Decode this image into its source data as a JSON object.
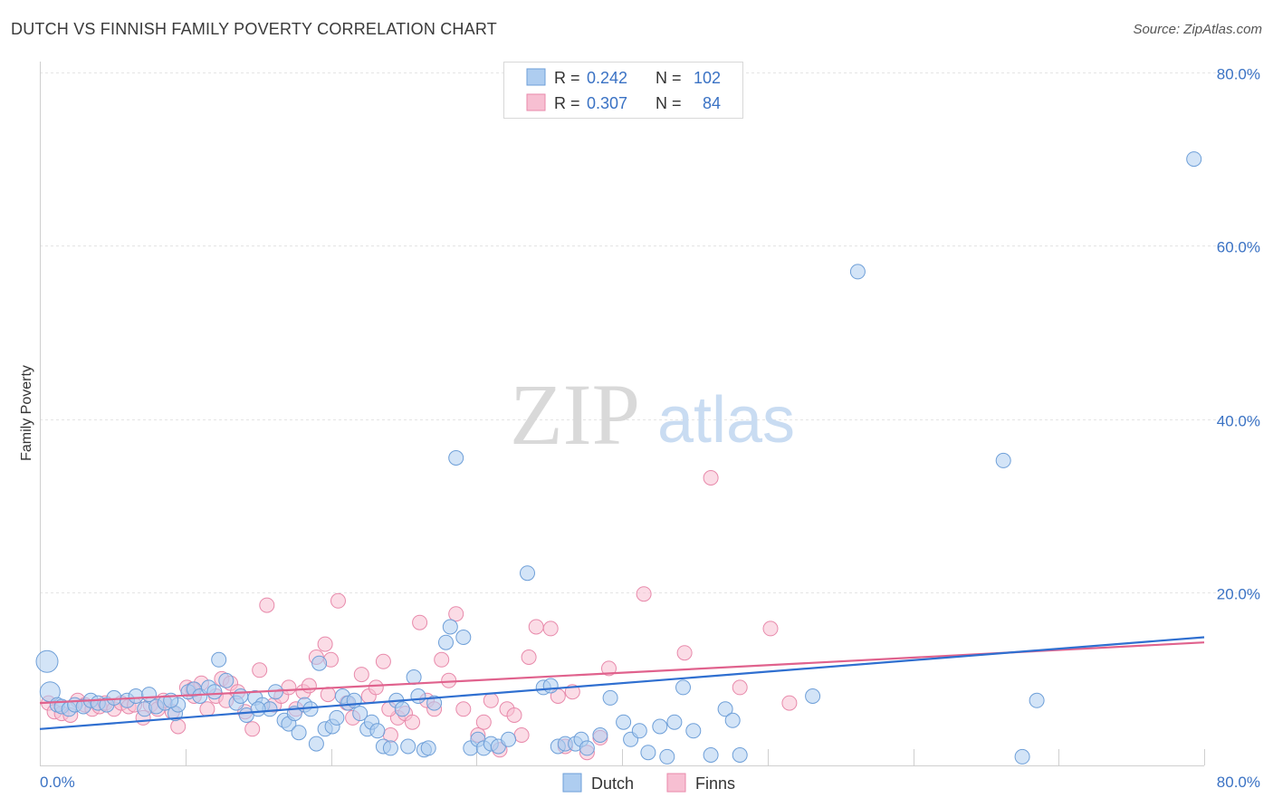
{
  "header": {
    "title": "DUTCH VS FINNISH FAMILY POVERTY CORRELATION CHART",
    "source": "Source: ZipAtlas.com"
  },
  "watermark": {
    "part1": "ZIP",
    "part2": "atlas"
  },
  "legend_box": {
    "rows": [
      {
        "r_label": "R =",
        "r_value": "0.242",
        "n_label": "N =",
        "n_value": "102",
        "color": "#7aaee8"
      },
      {
        "r_label": "R =",
        "r_value": "0.307",
        "n_label": "N =",
        "n_value": "84",
        "color": "#f28fb0"
      }
    ]
  },
  "bottom_legend": [
    {
      "label": "Dutch",
      "color": "#7aaee8"
    },
    {
      "label": "Finns",
      "color": "#f28fb0"
    }
  ],
  "colors": {
    "dutch_fill": "#aecdf0",
    "dutch_stroke": "#6e9fd8",
    "dutch_line": "#2f6fd0",
    "finns_fill": "#f7bfd2",
    "finns_stroke": "#e88aab",
    "finns_line": "#e0628d",
    "value_text": "#3a72c4"
  },
  "chart_data": {
    "type": "scatter",
    "title": "DUTCH VS FINNISH FAMILY POVERTY CORRELATION CHART",
    "xlabel": "",
    "ylabel": "Family Poverty",
    "xlim": [
      0,
      80
    ],
    "ylim": [
      0,
      80
    ],
    "x_tick_labels": [
      "0.0%",
      "80.0%"
    ],
    "y_ticks": [
      20,
      40,
      60,
      80
    ],
    "y_tick_labels": [
      "20.0%",
      "40.0%",
      "60.0%",
      "80.0%"
    ],
    "grid": true,
    "legend_position": "bottom",
    "series": [
      {
        "name": "Dutch",
        "r": 0.242,
        "n": 102,
        "trend": {
          "x0": 0,
          "y0": 4.2,
          "x1": 80,
          "y1": 14.8
        },
        "points": [
          [
            0.5,
            12.0
          ],
          [
            0.7,
            8.5
          ],
          [
            1.2,
            7.0
          ],
          [
            1.5,
            6.8
          ],
          [
            2.0,
            6.5
          ],
          [
            2.4,
            7.0
          ],
          [
            3.0,
            6.8
          ],
          [
            3.5,
            7.5
          ],
          [
            4.0,
            7.2
          ],
          [
            4.6,
            7.0
          ],
          [
            5.1,
            7.8
          ],
          [
            6.0,
            7.5
          ],
          [
            6.6,
            8.0
          ],
          [
            7.2,
            6.5
          ],
          [
            7.5,
            8.2
          ],
          [
            8.0,
            6.8
          ],
          [
            8.6,
            7.2
          ],
          [
            9.3,
            6.0
          ],
          [
            9.5,
            7.0
          ],
          [
            10.2,
            8.5
          ],
          [
            10.6,
            8.8
          ],
          [
            11.0,
            8.0
          ],
          [
            11.6,
            9.0
          ],
          [
            12.0,
            8.5
          ],
          [
            12.3,
            12.2
          ],
          [
            12.8,
            9.8
          ],
          [
            13.5,
            7.2
          ],
          [
            13.8,
            8.0
          ],
          [
            14.2,
            5.8
          ],
          [
            14.8,
            7.8
          ],
          [
            15.3,
            7.0
          ],
          [
            15.8,
            6.5
          ],
          [
            16.2,
            8.5
          ],
          [
            16.8,
            5.2
          ],
          [
            17.1,
            4.8
          ],
          [
            17.5,
            6.0
          ],
          [
            17.8,
            3.8
          ],
          [
            18.2,
            7.0
          ],
          [
            18.6,
            6.5
          ],
          [
            19.0,
            2.5
          ],
          [
            19.2,
            11.8
          ],
          [
            19.6,
            4.2
          ],
          [
            20.1,
            4.5
          ],
          [
            20.4,
            5.5
          ],
          [
            20.8,
            8.0
          ],
          [
            21.2,
            7.2
          ],
          [
            21.6,
            7.5
          ],
          [
            22.0,
            6.0
          ],
          [
            22.5,
            4.2
          ],
          [
            22.8,
            5.0
          ],
          [
            23.2,
            4.0
          ],
          [
            23.6,
            2.2
          ],
          [
            24.1,
            2.0
          ],
          [
            24.5,
            7.5
          ],
          [
            24.9,
            6.5
          ],
          [
            25.3,
            2.2
          ],
          [
            25.7,
            10.2
          ],
          [
            26.0,
            8.0
          ],
          [
            26.4,
            1.8
          ],
          [
            26.7,
            2.0
          ],
          [
            27.1,
            7.2
          ],
          [
            27.9,
            14.2
          ],
          [
            28.2,
            16.0
          ],
          [
            28.6,
            35.5
          ],
          [
            29.1,
            14.8
          ],
          [
            29.6,
            2.0
          ],
          [
            30.1,
            3.0
          ],
          [
            30.5,
            2.0
          ],
          [
            31.0,
            2.5
          ],
          [
            31.5,
            2.2
          ],
          [
            32.2,
            3.0
          ],
          [
            33.5,
            22.2
          ],
          [
            34.6,
            9.0
          ],
          [
            35.1,
            9.2
          ],
          [
            35.6,
            2.2
          ],
          [
            36.1,
            2.5
          ],
          [
            36.8,
            2.5
          ],
          [
            37.2,
            3.0
          ],
          [
            37.6,
            2.0
          ],
          [
            38.5,
            3.5
          ],
          [
            39.2,
            7.8
          ],
          [
            40.1,
            5.0
          ],
          [
            40.6,
            3.0
          ],
          [
            41.2,
            4.0
          ],
          [
            41.8,
            1.5
          ],
          [
            42.6,
            4.5
          ],
          [
            43.1,
            1.0
          ],
          [
            43.6,
            5.0
          ],
          [
            44.2,
            9.0
          ],
          [
            44.9,
            4.0
          ],
          [
            46.1,
            1.2
          ],
          [
            47.1,
            6.5
          ],
          [
            47.6,
            5.2
          ],
          [
            48.1,
            1.2
          ],
          [
            53.1,
            8.0
          ],
          [
            56.2,
            57.0
          ],
          [
            66.2,
            35.2
          ],
          [
            67.5,
            1.0
          ],
          [
            68.5,
            7.5
          ],
          [
            79.3,
            70.0
          ],
          [
            9.0,
            7.5
          ],
          [
            15.0,
            6.5
          ]
        ]
      },
      {
        "name": "Finns",
        "r": 0.307,
        "n": 84,
        "trend": {
          "x0": 0,
          "y0": 7.2,
          "x1": 80,
          "y1": 14.2
        },
        "points": [
          [
            0.6,
            7.2
          ],
          [
            1.0,
            6.2
          ],
          [
            1.5,
            6.0
          ],
          [
            2.1,
            5.8
          ],
          [
            2.6,
            7.5
          ],
          [
            3.1,
            7.0
          ],
          [
            3.6,
            6.5
          ],
          [
            4.1,
            6.8
          ],
          [
            4.5,
            7.2
          ],
          [
            5.1,
            6.5
          ],
          [
            5.6,
            7.2
          ],
          [
            6.1,
            6.8
          ],
          [
            6.5,
            7.0
          ],
          [
            7.1,
            5.5
          ],
          [
            7.6,
            7.0
          ],
          [
            8.1,
            6.5
          ],
          [
            8.5,
            7.5
          ],
          [
            9.1,
            6.2
          ],
          [
            9.5,
            4.5
          ],
          [
            10.1,
            9.0
          ],
          [
            10.6,
            8.0
          ],
          [
            11.1,
            9.5
          ],
          [
            11.5,
            6.5
          ],
          [
            12.1,
            8.0
          ],
          [
            12.5,
            10.0
          ],
          [
            13.1,
            9.5
          ],
          [
            13.6,
            8.5
          ],
          [
            14.1,
            6.2
          ],
          [
            14.6,
            4.2
          ],
          [
            15.1,
            11.0
          ],
          [
            15.6,
            18.5
          ],
          [
            16.1,
            7.0
          ],
          [
            16.6,
            8.0
          ],
          [
            17.1,
            9.0
          ],
          [
            17.6,
            6.5
          ],
          [
            18.1,
            8.5
          ],
          [
            18.5,
            9.2
          ],
          [
            19.0,
            12.5
          ],
          [
            19.6,
            14.0
          ],
          [
            20.0,
            12.2
          ],
          [
            20.5,
            19.0
          ],
          [
            21.1,
            7.2
          ],
          [
            21.5,
            5.5
          ],
          [
            22.1,
            10.5
          ],
          [
            22.6,
            8.0
          ],
          [
            23.1,
            9.0
          ],
          [
            23.6,
            12.0
          ],
          [
            24.1,
            3.5
          ],
          [
            24.6,
            5.5
          ],
          [
            25.1,
            6.0
          ],
          [
            25.6,
            5.0
          ],
          [
            26.1,
            16.5
          ],
          [
            26.6,
            7.5
          ],
          [
            27.1,
            6.5
          ],
          [
            27.6,
            12.2
          ],
          [
            28.1,
            9.8
          ],
          [
            28.6,
            17.5
          ],
          [
            29.1,
            6.5
          ],
          [
            30.1,
            3.5
          ],
          [
            31.0,
            7.5
          ],
          [
            31.6,
            1.8
          ],
          [
            32.1,
            6.5
          ],
          [
            32.6,
            5.8
          ],
          [
            33.1,
            3.5
          ],
          [
            33.6,
            12.5
          ],
          [
            34.1,
            16.0
          ],
          [
            35.1,
            15.8
          ],
          [
            35.6,
            8.0
          ],
          [
            36.1,
            2.2
          ],
          [
            36.6,
            8.5
          ],
          [
            37.6,
            1.5
          ],
          [
            38.5,
            3.2
          ],
          [
            39.1,
            11.2
          ],
          [
            41.5,
            19.8
          ],
          [
            44.3,
            13.0
          ],
          [
            46.1,
            33.2
          ],
          [
            48.1,
            9.0
          ],
          [
            50.2,
            15.8
          ],
          [
            51.5,
            7.2
          ],
          [
            10.5,
            8.8
          ],
          [
            12.8,
            7.5
          ],
          [
            19.8,
            8.2
          ],
          [
            24.0,
            6.5
          ],
          [
            30.5,
            5.0
          ]
        ]
      }
    ]
  }
}
